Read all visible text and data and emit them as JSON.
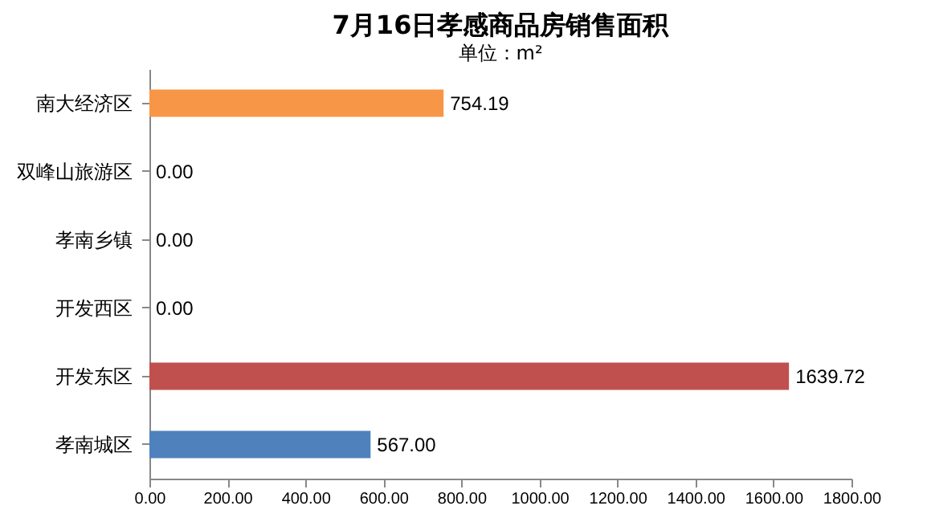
{
  "chart_data": {
    "type": "bar",
    "orientation": "horizontal",
    "title": "7月16日孝感商品房销售面积",
    "annotations": [
      "单位：m²"
    ],
    "categories": [
      "南大经济区",
      "双峰山旅游区",
      "孝南乡镇",
      "开发西区",
      "开发东区",
      "孝南城区"
    ],
    "values": [
      754.19,
      0,
      0,
      0,
      1639.72,
      567
    ],
    "colors": [
      "#f79646",
      "#9bbb59",
      "#8064a2",
      "#4bacc6",
      "#c0504d",
      "#4f81bd"
    ],
    "value_labels": [
      "754.19",
      "0.00",
      "0.00",
      "0.00",
      "1639.72",
      "567.00"
    ],
    "xlim": [
      0,
      1800
    ],
    "xticks": [
      {
        "value": 0,
        "label": "0.00"
      },
      {
        "value": 200,
        "label": "200.00"
      },
      {
        "value": 400,
        "label": "400.00"
      },
      {
        "value": 600,
        "label": "600.00"
      },
      {
        "value": 800,
        "label": "800.00"
      },
      {
        "value": 1000,
        "label": "1000.00"
      },
      {
        "value": 1200,
        "label": "1200.00"
      },
      {
        "value": 1400,
        "label": "1400.00"
      },
      {
        "value": 1600,
        "label": "1600.00"
      },
      {
        "value": 1800,
        "label": "1800.00"
      }
    ],
    "grid": false,
    "legend": false
  }
}
